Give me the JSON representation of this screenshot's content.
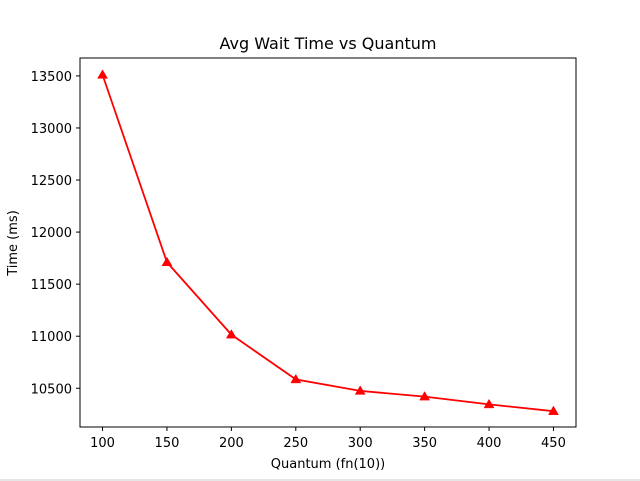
{
  "chart_data": {
    "type": "line",
    "title": "Avg Wait Time vs Quantum",
    "xlabel": "Quantum (fn(10))",
    "ylabel": "Time (ms)",
    "x": [
      100,
      150,
      200,
      250,
      300,
      350,
      400,
      450
    ],
    "series": [
      {
        "name": "Avg Wait Time",
        "values": [
          13510,
          11710,
          11015,
          10585,
          10475,
          10420,
          10345,
          10280
        ],
        "color": "#ff0000",
        "marker": "triangle-up"
      }
    ],
    "xlim": [
      82.5,
      467.5
    ],
    "ylim": [
      10128,
      13672
    ],
    "xticks": [
      100,
      150,
      200,
      250,
      300,
      350,
      400,
      450
    ],
    "yticks": [
      10500,
      11000,
      11500,
      12000,
      12500,
      13000,
      13500
    ],
    "grid": false
  }
}
